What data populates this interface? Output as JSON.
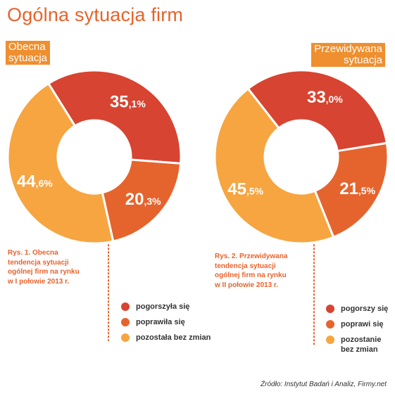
{
  "title": "Ogólna sytuacja firm",
  "source": "Źródło: Instytut Badań i Analiz, Firmy.net",
  "colors": {
    "title": "#e8622a",
    "dark_red": "#d74431",
    "orange": "#e5642d",
    "light_orange": "#f6a541",
    "tag_bg": "#ef8f2f",
    "caption": "#e8622a",
    "connector": "#e8622a"
  },
  "left": {
    "tag_line1": "Obecna",
    "tag_line2": "sytuacja",
    "caption_line1": "Rys. 1. Obecna",
    "caption_line2": "tendencja sytuacji",
    "caption_line3": "ogólnej firm na rynku",
    "caption_line4": "w I połowie 2013 r.",
    "labels": [
      {
        "int": "35",
        "dec": ",1%"
      },
      {
        "int": "20",
        "dec": ",3%"
      },
      {
        "int": "44",
        "dec": ",6%"
      }
    ],
    "legend": [
      "pogorszyła się",
      "poprawiła się",
      "pozostała bez zmian"
    ]
  },
  "right": {
    "tag_line1": "Przewidywana",
    "tag_line2": "sytuacja",
    "caption_line1": "Rys. 2. Przewidywana",
    "caption_line2": "tendencja sytuacji",
    "caption_line3": "ogólnej firm na rynku",
    "caption_line4": "w II połowie 2013 r.",
    "labels": [
      {
        "int": "33",
        "dec": ",0%"
      },
      {
        "int": "21",
        "dec": ",5%"
      },
      {
        "int": "45",
        "dec": ",5%"
      }
    ],
    "legend": [
      "pogorszy się",
      "poprawi się",
      "pozostanie bez zmian"
    ],
    "legend_3_line1": "pozostanie",
    "legend_3_line2": "bez zmian"
  },
  "chart_data": [
    {
      "type": "pie",
      "title": "Obecna sytuacja",
      "categories": [
        "pogorszyła się",
        "poprawiła się",
        "pozostała bez zmian"
      ],
      "values": [
        35.1,
        20.3,
        44.6
      ],
      "colors": [
        "#d74431",
        "#e5642d",
        "#f6a541"
      ],
      "donut": true
    },
    {
      "type": "pie",
      "title": "Przewidywana sytuacja",
      "categories": [
        "pogorszy się",
        "poprawi się",
        "pozostanie bez zmian"
      ],
      "values": [
        33.0,
        21.5,
        45.5
      ],
      "colors": [
        "#d74431",
        "#e5642d",
        "#f6a541"
      ],
      "donut": true
    }
  ]
}
